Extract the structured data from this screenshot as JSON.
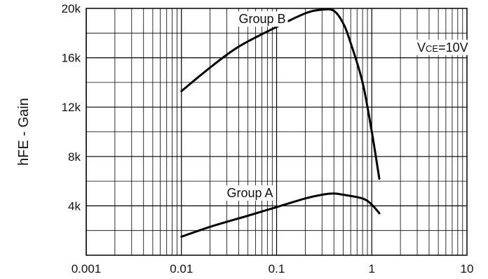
{
  "chart_data": {
    "type": "line",
    "title": "",
    "xlabel": "",
    "ylabel": "hFE - Gain",
    "xscale": "log",
    "xlim": [
      0.001,
      10
    ],
    "ylim": [
      0,
      20000
    ],
    "x_ticks": [
      0.001,
      0.01,
      0.1,
      1,
      10
    ],
    "x_tick_labels": [
      "0.001",
      "0.01",
      "0.1",
      "1",
      "10"
    ],
    "y_ticks": [
      4000,
      8000,
      12000,
      16000,
      20000
    ],
    "y_tick_labels": [
      "4k",
      "8k",
      "12k",
      "16k",
      "20k"
    ],
    "grid": true,
    "series": [
      {
        "name": "Group B",
        "x": [
          0.01,
          0.02,
          0.04,
          0.1,
          0.2,
          0.3,
          0.4,
          0.5,
          0.6,
          0.8,
          1.0,
          1.2
        ],
        "y": [
          13300,
          15200,
          16900,
          18500,
          19600,
          19900,
          19800,
          18800,
          17200,
          14000,
          10000,
          6200
        ]
      },
      {
        "name": "Group A",
        "x": [
          0.01,
          0.02,
          0.05,
          0.1,
          0.2,
          0.3,
          0.4,
          0.5,
          0.8,
          1.0,
          1.2
        ],
        "y": [
          1500,
          2300,
          3200,
          3900,
          4600,
          4900,
          5000,
          4900,
          4600,
          4100,
          3400
        ]
      }
    ],
    "annotations": [
      {
        "text": "Group B",
        "x": 0.04,
        "y": 18800
      },
      {
        "text": "Group A",
        "x": 0.03,
        "y": 4700
      },
      {
        "text_main": "V",
        "text_sub": "CE",
        "text_rest": "=10V",
        "x": 3,
        "y": 16500
      }
    ]
  }
}
